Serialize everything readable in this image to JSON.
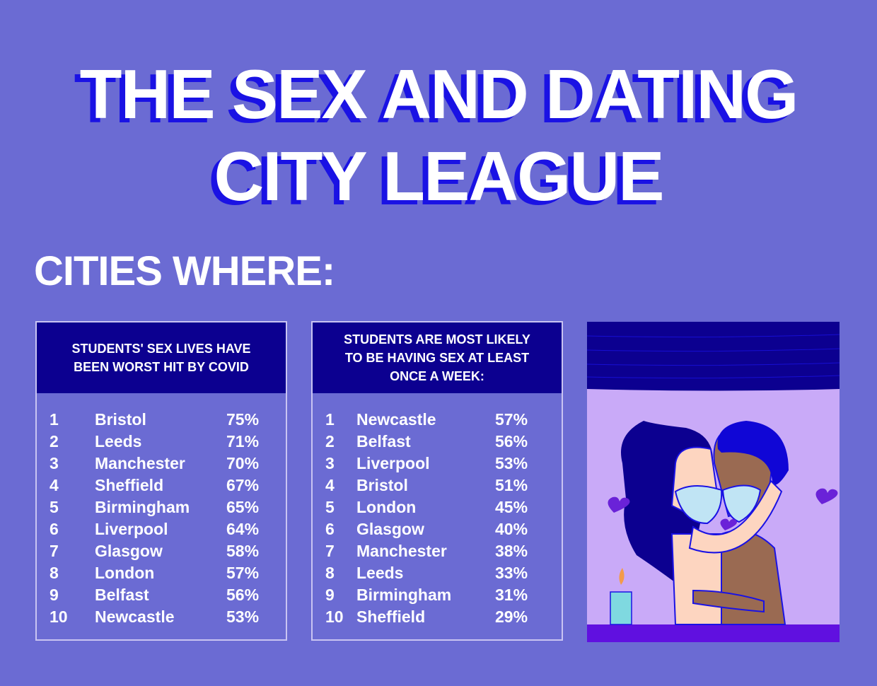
{
  "title": {
    "line1": "THE SEX AND DATING",
    "line2": "CITY LEAGUE"
  },
  "subtitle": "CITIES WHERE:",
  "tables": [
    {
      "heading": "STUDENTS' SEX LIVES HAVE BEEN WORST HIT BY COVID",
      "rows": [
        {
          "rank": "1",
          "city": "Bristol",
          "pct": "75%"
        },
        {
          "rank": "2",
          "city": "Leeds",
          "pct": "71%"
        },
        {
          "rank": "3",
          "city": "Manchester",
          "pct": "70%"
        },
        {
          "rank": "4",
          "city": "Sheffield",
          "pct": "67%"
        },
        {
          "rank": "5",
          "city": "Birmingham",
          "pct": "65%"
        },
        {
          "rank": "6",
          "city": "Liverpool",
          "pct": "64%"
        },
        {
          "rank": "7",
          "city": "Glasgow",
          "pct": "58%"
        },
        {
          "rank": "8",
          "city": "London",
          "pct": "57%"
        },
        {
          "rank": "9",
          "city": "Belfast",
          "pct": "56%"
        },
        {
          "rank": "10",
          "city": "Newcastle",
          "pct": "53%"
        }
      ]
    },
    {
      "heading": "STUDENTS ARE MOST LIKELY TO BE HAVING SEX AT LEAST ONCE A WEEK:",
      "rows": [
        {
          "rank": "1",
          "city": "Newcastle",
          "pct": "57%"
        },
        {
          "rank": "2",
          "city": "Belfast",
          "pct": "56%"
        },
        {
          "rank": "3",
          "city": "Liverpool",
          "pct": "53%"
        },
        {
          "rank": "4",
          "city": "Bristol",
          "pct": "51%"
        },
        {
          "rank": "5",
          "city": "London",
          "pct": "45%"
        },
        {
          "rank": "6",
          "city": "Glasgow",
          "pct": "40%"
        },
        {
          "rank": "7",
          "city": "Manchester",
          "pct": "38%"
        },
        {
          "rank": "8",
          "city": "Leeds",
          "pct": "33%"
        },
        {
          "rank": "9",
          "city": "Birmingham",
          "pct": "31%"
        },
        {
          "rank": "10",
          "city": "Sheffield",
          "pct": "29%"
        }
      ]
    }
  ],
  "colors": {
    "background": "#6b6bd3",
    "header": "#0c0090",
    "title_shadow": "#1a12e4",
    "illustration_bg": "#c9aaf8"
  }
}
